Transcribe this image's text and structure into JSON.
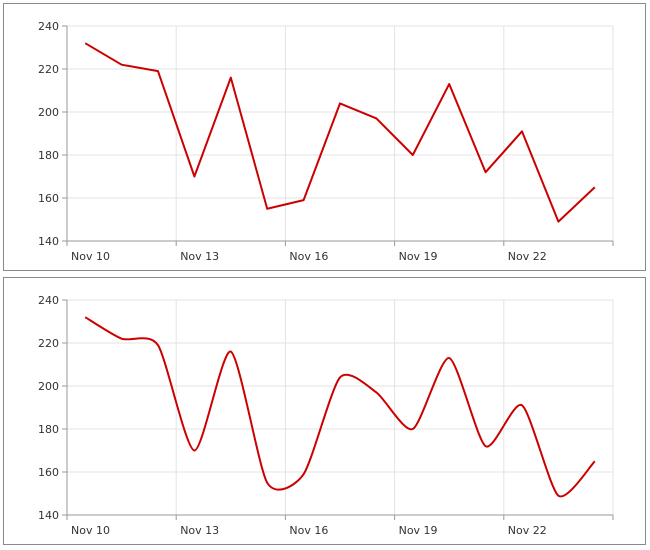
{
  "chart_data": [
    {
      "type": "line",
      "style": "straight",
      "x": [
        "Nov 10",
        "Nov 11",
        "Nov 12",
        "Nov 13",
        "Nov 14",
        "Nov 15",
        "Nov 16",
        "Nov 17",
        "Nov 18",
        "Nov 19",
        "Nov 20",
        "Nov 21",
        "Nov 22",
        "Nov 23",
        "Nov 24"
      ],
      "values": [
        232,
        222,
        219,
        170,
        216,
        155,
        159,
        204,
        197,
        180,
        213,
        172,
        191,
        149,
        165
      ],
      "x_tick_labels": [
        "Nov 10",
        "Nov 13",
        "Nov 16",
        "Nov 19",
        "Nov 22"
      ],
      "y_tick_labels": [
        "140",
        "160",
        "180",
        "200",
        "220",
        "240"
      ],
      "ylim": [
        140,
        240
      ],
      "grid": true,
      "color": "#cc0000"
    },
    {
      "type": "line",
      "style": "spline",
      "x": [
        "Nov 10",
        "Nov 11",
        "Nov 12",
        "Nov 13",
        "Nov 14",
        "Nov 15",
        "Nov 16",
        "Nov 17",
        "Nov 18",
        "Nov 19",
        "Nov 20",
        "Nov 21",
        "Nov 22",
        "Nov 23",
        "Nov 24"
      ],
      "values": [
        232,
        222,
        219,
        170,
        216,
        155,
        159,
        204,
        197,
        180,
        213,
        172,
        191,
        149,
        165
      ],
      "x_tick_labels": [
        "Nov 10",
        "Nov 13",
        "Nov 16",
        "Nov 19",
        "Nov 22"
      ],
      "y_tick_labels": [
        "140",
        "160",
        "180",
        "200",
        "220",
        "240"
      ],
      "ylim": [
        140,
        240
      ],
      "grid": true,
      "color": "#cc0000"
    }
  ]
}
